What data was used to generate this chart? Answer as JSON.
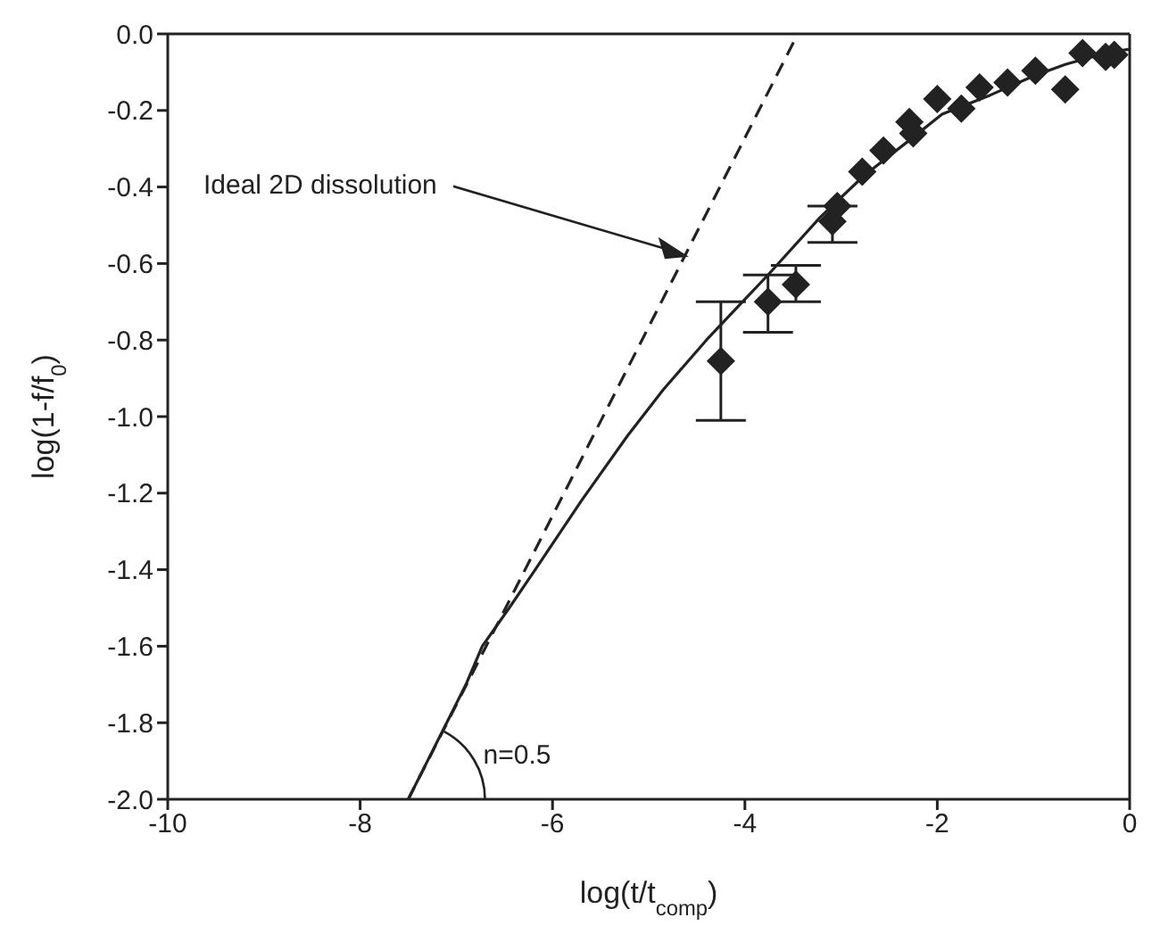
{
  "chart_data": {
    "type": "scatter",
    "xlabel": "log(t/t$_{comp}$)",
    "ylabel": "log(1-f/f$_{0}$)",
    "xlim": [
      -10,
      0
    ],
    "xticks": [
      -10,
      -8,
      -6,
      -4,
      -2,
      0
    ],
    "ylim": [
      -2.0,
      0.0
    ],
    "yticks": [
      {
        "value": -2.0,
        "label": "-2.0"
      },
      {
        "value": -1.8,
        "label": "-1.8"
      },
      {
        "value": -1.6,
        "label": "-1.6"
      },
      {
        "value": -1.4,
        "label": "-1.4"
      },
      {
        "value": -1.2,
        "label": "-1.2"
      },
      {
        "value": -1.0,
        "label": "-1.0"
      },
      {
        "value": -0.8,
        "label": "-0.8"
      },
      {
        "value": -0.6,
        "label": "-0.6"
      },
      {
        "value": -0.4,
        "label": "-0.4"
      },
      {
        "value": -0.2,
        "label": "-0.2"
      },
      {
        "value": 0.0,
        "label": "0.0"
      }
    ],
    "series": [
      {
        "color": "#222222",
        "marker": "diamond",
        "x": [
          -4.25,
          -3.76,
          -3.47,
          -3.09,
          -3.04,
          -2.78,
          -2.56,
          -2.29,
          -2.25,
          -2.0,
          -1.75,
          -1.56,
          -1.27,
          -0.98,
          -0.67,
          -0.49,
          -0.25,
          -0.16
        ],
        "values": [
          -0.855,
          -0.7,
          -0.655,
          -0.49,
          -0.45,
          -0.36,
          -0.305,
          -0.23,
          -0.26,
          -0.17,
          -0.195,
          -0.14,
          -0.127,
          -0.096,
          -0.145,
          -0.05,
          -0.06,
          -0.055
        ],
        "errors": [
          [
            -1.01,
            -0.7
          ],
          [
            -0.78,
            -0.63
          ],
          [
            -0.7,
            -0.605
          ],
          [
            -0.545,
            -0.45
          ],
          null,
          null,
          null,
          null,
          null,
          null,
          null,
          null,
          null,
          null,
          null,
          null,
          null,
          null
        ]
      },
      {
        "type": "line",
        "color": "#222222",
        "line_style": "solid",
        "marker": "none",
        "x": [
          -7.5,
          -7.3,
          -7.1,
          -6.9,
          -6.73,
          -6.45,
          -6.18,
          -5.7,
          -5.22,
          -4.85,
          -4.4,
          -4.1,
          -3.76,
          -3.22,
          -2.76,
          -2.3,
          -1.95,
          -1.45,
          -1.0,
          -0.67,
          -0.25,
          0.0
        ],
        "values": [
          -2.0,
          -1.9,
          -1.8,
          -1.7,
          -1.6,
          -1.5,
          -1.4,
          -1.22,
          -1.05,
          -0.93,
          -0.8,
          -0.72,
          -0.63,
          -0.48,
          -0.37,
          -0.28,
          -0.21,
          -0.16,
          -0.11,
          -0.08,
          -0.05,
          -0.04
        ]
      },
      {
        "type": "line",
        "color": "#222222",
        "line_style": "dashed",
        "marker": "none",
        "x": [
          -7.5,
          -3.45
        ],
        "values": [
          -2.0,
          0.0
        ]
      }
    ],
    "annotations": [
      {
        "text": "Ideal 2D dissolution",
        "x": -4.62,
        "y": -0.58
      },
      {
        "text": "n=0.5",
        "x": -7.5,
        "y": -2.0
      }
    ]
  }
}
